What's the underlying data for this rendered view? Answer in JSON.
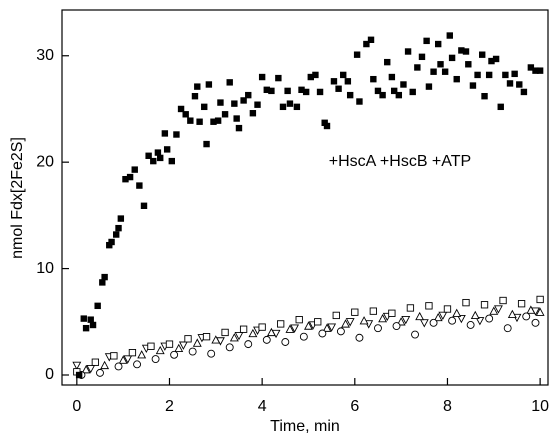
{
  "chart_data": {
    "type": "scatter",
    "xlabel": "Time, min",
    "ylabel": "nmol Fdx[2Fe2S]",
    "annotation": "+HscA +HscB +ATP",
    "xlim": [
      -0.32,
      10.17
    ],
    "ylim": [
      -0.94,
      34.3
    ],
    "xticks": [
      0,
      2,
      4,
      6,
      8,
      10
    ],
    "yticks": [
      0,
      10,
      20,
      30
    ],
    "color": "#000000",
    "series": [
      {
        "marker": "square-filled",
        "x": [
          0.05,
          0.15,
          0.2,
          0.3,
          0.35,
          0.45,
          0.55,
          0.6,
          0.7,
          0.75,
          0.85,
          0.9,
          0.95,
          1.05,
          1.15,
          1.25,
          1.35,
          1.45,
          1.55,
          1.65,
          1.75,
          1.8,
          1.9,
          1.95,
          2.05,
          2.15,
          2.25,
          2.35,
          2.45,
          2.55,
          2.6,
          2.65,
          2.75,
          2.8,
          2.85,
          2.95,
          3.05,
          3.1,
          3.2,
          3.3,
          3.4,
          3.45,
          3.5,
          3.6,
          3.7,
          3.8,
          3.9,
          4.0,
          4.1,
          4.2,
          4.35,
          4.45,
          4.55,
          4.6,
          4.75,
          4.85,
          4.95,
          5.05,
          5.15,
          5.25,
          5.35,
          5.4,
          5.55,
          5.65,
          5.75,
          5.85,
          5.9,
          6.05,
          6.1,
          6.25,
          6.35,
          6.4,
          6.5,
          6.6,
          6.7,
          6.8,
          6.85,
          6.95,
          7.05,
          7.15,
          7.25,
          7.35,
          7.45,
          7.55,
          7.6,
          7.7,
          7.8,
          7.85,
          7.95,
          8.05,
          8.1,
          8.2,
          8.3,
          8.4,
          8.45,
          8.55,
          8.65,
          8.75,
          8.8,
          8.9,
          8.95,
          9.05,
          9.15,
          9.25,
          9.35,
          9.45,
          9.55,
          9.65,
          9.8,
          9.9,
          10.0
        ],
        "values": [
          0,
          5.3,
          4.4,
          5.2,
          4.7,
          6.5,
          8.7,
          9.2,
          12.2,
          12.5,
          13.2,
          13.8,
          14.7,
          18.4,
          18.6,
          19.3,
          17.8,
          15.9,
          20.6,
          20.1,
          20.9,
          20.4,
          22.7,
          21.2,
          20.1,
          22.6,
          25,
          24.5,
          23.9,
          26.2,
          27.1,
          23.8,
          25.2,
          21.7,
          27.3,
          23.8,
          23.9,
          25.6,
          24.5,
          27.5,
          25.5,
          24.1,
          23.2,
          25.8,
          26.3,
          24.6,
          25.4,
          28,
          26.8,
          26.7,
          27.9,
          25.2,
          26.7,
          25.5,
          25.2,
          26.8,
          26.6,
          28,
          28.2,
          26.6,
          23.7,
          23.4,
          27.6,
          26.9,
          28.2,
          27.6,
          26.3,
          30.1,
          25.7,
          31.1,
          31.5,
          27.8,
          26.7,
          26.3,
          29.4,
          28,
          26.7,
          26.3,
          27.3,
          30.4,
          26.6,
          28.9,
          29.9,
          31.4,
          27.1,
          28.5,
          31.1,
          29.2,
          28.5,
          31.9,
          29.8,
          27.8,
          30.5,
          30.4,
          29.2,
          27.2,
          28.2,
          30.1,
          26.2,
          28.2,
          29.5,
          29.7,
          25.2,
          28.2,
          27.4,
          28.3,
          27.3,
          26.6,
          28.9,
          28.6,
          28.6
        ]
      },
      {
        "marker": "square-open",
        "x": [
          0,
          0.4,
          0.8,
          1.2,
          1.6,
          2.0,
          2.4,
          2.8,
          3.2,
          3.6,
          4.0,
          4.4,
          4.8,
          5.2,
          5.6,
          6.0,
          6.4,
          6.8,
          7.2,
          7.6,
          8.0,
          8.4,
          8.8,
          9.2,
          9.6,
          10.0
        ],
        "values": [
          0.3,
          1.2,
          1.8,
          2.1,
          2.7,
          2.9,
          3.4,
          3.6,
          4.0,
          4.3,
          4.5,
          4.8,
          5.2,
          5.0,
          5.6,
          5.9,
          6.0,
          5.8,
          6.3,
          6.5,
          6.2,
          6.8,
          6.6,
          7.0,
          6.7,
          7.1
        ]
      },
      {
        "marker": "circle-open",
        "x": [
          0.1,
          0.5,
          0.9,
          1.3,
          1.7,
          2.1,
          2.5,
          2.9,
          3.3,
          3.7,
          4.1,
          4.5,
          4.9,
          5.3,
          5.7,
          6.1,
          6.5,
          6.9,
          7.3,
          7.7,
          8.1,
          8.5,
          8.9,
          9.3,
          9.7,
          9.9
        ],
        "values": [
          0.0,
          0.2,
          0.8,
          1.0,
          1.5,
          1.9,
          2.2,
          2.0,
          2.6,
          2.9,
          3.3,
          3.1,
          3.6,
          3.9,
          4.1,
          3.5,
          4.4,
          4.6,
          3.8,
          4.9,
          5.1,
          4.7,
          5.3,
          4.4,
          5.5,
          4.9
        ]
      },
      {
        "marker": "triangle-open",
        "x": [
          0.2,
          0.6,
          1.0,
          1.4,
          1.8,
          2.2,
          2.6,
          3.0,
          3.4,
          3.8,
          4.2,
          4.6,
          5.0,
          5.4,
          5.8,
          6.2,
          6.6,
          7.0,
          7.4,
          7.8,
          8.2,
          8.6,
          9.0,
          9.4,
          9.8,
          10.0
        ],
        "values": [
          0.5,
          0.9,
          1.4,
          1.9,
          2.3,
          2.5,
          3.0,
          3.3,
          3.5,
          3.9,
          4.0,
          4.3,
          4.6,
          4.4,
          4.8,
          5.1,
          5.3,
          5.0,
          5.5,
          5.4,
          5.8,
          5.6,
          6.0,
          5.7,
          6.1,
          5.9
        ]
      },
      {
        "marker": "triangle-down-open",
        "x": [
          0.0,
          0.3,
          0.7,
          1.1,
          1.5,
          1.9,
          2.3,
          2.7,
          3.1,
          3.5,
          3.9,
          4.3,
          4.7,
          5.1,
          5.5,
          5.9,
          6.3,
          6.7,
          7.1,
          7.5,
          7.9,
          8.3,
          8.7,
          9.1,
          9.5,
          9.9
        ],
        "values": [
          0.9,
          0.6,
          1.7,
          1.5,
          2.5,
          2.7,
          2.8,
          3.5,
          3.2,
          3.7,
          4.2,
          3.9,
          4.4,
          4.7,
          4.5,
          5.0,
          4.8,
          5.5,
          5.2,
          4.9,
          5.6,
          5.3,
          5.1,
          6.2,
          5.4,
          6.0
        ]
      }
    ]
  }
}
